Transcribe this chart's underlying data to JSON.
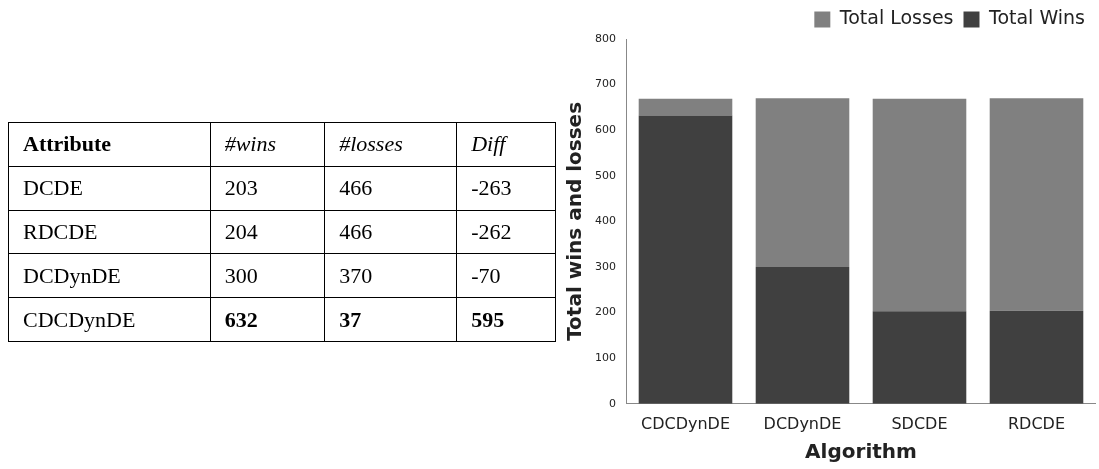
{
  "chart_data": [
    {
      "type": "heatmap",
      "ylabel": "Attribute",
      "categories": [
        "#wins",
        "#losses",
        "Diff"
      ],
      "y_categories": [
        "DCDE",
        "RDCDE",
        "DCDynDE",
        "CDCDynDE"
      ],
      "cells": [
        [
          203,
          466,
          -263
        ],
        [
          204,
          466,
          -262
        ],
        [
          300,
          370,
          -70
        ],
        [
          632,
          37,
          595
        ]
      ],
      "data_labels": true
    },
    {
      "type": "bar",
      "stacked": true,
      "categories": [
        "CDCDynDE",
        "DCDynDE",
        "SDCDE",
        "RDCDE"
      ],
      "series": [
        {
          "name": "Total Wins",
          "color": "#404040",
          "values": [
            632,
            300,
            203,
            204
          ]
        },
        {
          "name": "Total Losses",
          "color": "#808080",
          "values": [
            37,
            370,
            466,
            466
          ]
        }
      ],
      "ylim": [
        0,
        800
      ],
      "yticks": [
        0,
        100,
        200,
        300,
        400,
        500,
        600,
        700,
        800
      ],
      "ylabel": "Total wins and losses",
      "xlabel": "Algorithm",
      "legend": "top right",
      "grid": false
    }
  ]
}
